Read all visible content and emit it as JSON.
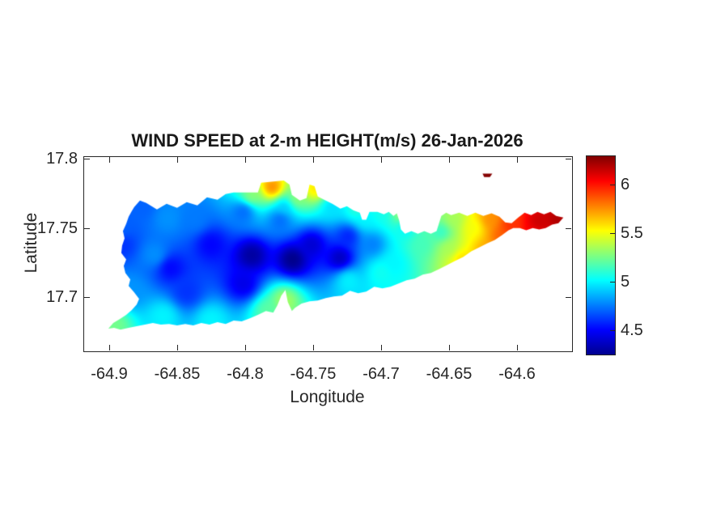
{
  "title": "WIND SPEED at 2-m HEIGHT(m/s) 26-Jan-2026",
  "axes": {
    "xlabel": "Longitude",
    "ylabel": "Latitude",
    "xlim": [
      -64.919,
      -64.561
    ],
    "ylim": [
      17.6616,
      17.802
    ],
    "xticks": [
      -64.9,
      -64.85,
      -64.8,
      -64.75,
      -64.7,
      -64.65,
      -64.6
    ],
    "xtick_labels": [
      "-64.9",
      "-64.85",
      "-64.8",
      "-64.75",
      "-64.7",
      "-64.65",
      "-64.6"
    ],
    "yticks": [
      17.7,
      17.75,
      17.8
    ],
    "ytick_labels": [
      "17.7",
      "17.75",
      "17.8"
    ],
    "axis_color": "#262626",
    "grid": false,
    "box": true
  },
  "colorbar": {
    "location": "right",
    "limits": [
      4.25,
      6.29
    ],
    "ticks": [
      4.5,
      5,
      5.5,
      6
    ],
    "tick_labels": [
      "4.5",
      "5",
      "5.5",
      "6"
    ],
    "colormap": "jet"
  },
  "chart_data": {
    "type": "heatmap",
    "title": "WIND SPEED at 2-m HEIGHT(m/s) 26-Jan-2026",
    "xlabel": "Longitude",
    "ylabel": "Latitude",
    "units": "m/s",
    "colormap": "jet",
    "value_range": [
      4.25,
      6.29
    ],
    "island_outline": [
      [
        -64.8822,
        17.7657
      ],
      [
        -64.878,
        17.7704
      ],
      [
        -64.8733,
        17.7687
      ],
      [
        -64.8655,
        17.764
      ],
      [
        -64.8584,
        17.7681
      ],
      [
        -64.8507,
        17.7652
      ],
      [
        -64.8436,
        17.7692
      ],
      [
        -64.8358,
        17.7669
      ],
      [
        -64.8287,
        17.7728
      ],
      [
        -64.821,
        17.771
      ],
      [
        -64.815,
        17.7751
      ],
      [
        -64.8091,
        17.7763
      ],
      [
        -64.7913,
        17.7763
      ],
      [
        -64.7889,
        17.7833
      ],
      [
        -64.7723,
        17.785
      ],
      [
        -64.7681,
        17.7821
      ],
      [
        -64.7663,
        17.7745
      ],
      [
        -64.7604,
        17.7704
      ],
      [
        -64.7556,
        17.7722
      ],
      [
        -64.7533,
        17.7821
      ],
      [
        -64.7497,
        17.7809
      ],
      [
        -64.7473,
        17.7733
      ],
      [
        -64.7426,
        17.771
      ],
      [
        -64.7366,
        17.7681
      ],
      [
        -64.7307,
        17.7646
      ],
      [
        -64.7259,
        17.7663
      ],
      [
        -64.7212,
        17.7634
      ],
      [
        -64.7164,
        17.7616
      ],
      [
        -64.7147,
        17.7564
      ],
      [
        -64.7117,
        17.7564
      ],
      [
        -64.7093,
        17.7622
      ],
      [
        -64.7034,
        17.7622
      ],
      [
        -64.6987,
        17.7605
      ],
      [
        -64.6951,
        17.7622
      ],
      [
        -64.6916,
        17.7593
      ],
      [
        -64.6892,
        17.7611
      ],
      [
        -64.6874,
        17.7558
      ],
      [
        -64.6862,
        17.7494
      ],
      [
        -64.6832,
        17.7464
      ],
      [
        -64.6785,
        17.7482
      ],
      [
        -64.6737,
        17.7464
      ],
      [
        -64.669,
        17.7482
      ],
      [
        -64.6642,
        17.7464
      ],
      [
        -64.66,
        17.7482
      ],
      [
        -64.6582,
        17.754
      ],
      [
        -64.6565,
        17.7593
      ],
      [
        -64.6529,
        17.7616
      ],
      [
        -64.6493,
        17.7599
      ],
      [
        -64.6434,
        17.7616
      ],
      [
        -64.6374,
        17.7593
      ],
      [
        -64.6315,
        17.7616
      ],
      [
        -64.6256,
        17.7593
      ],
      [
        -64.6196,
        17.7611
      ],
      [
        -64.6137,
        17.7587
      ],
      [
        -64.6095,
        17.7546
      ],
      [
        -64.6048,
        17.754
      ],
      [
        -64.6,
        17.7581
      ],
      [
        -64.5953,
        17.7616
      ],
      [
        -64.5905,
        17.7599
      ],
      [
        -64.5858,
        17.7622
      ],
      [
        -64.581,
        17.7605
      ],
      [
        -64.5763,
        17.7622
      ],
      [
        -64.5721,
        17.7593
      ],
      [
        -64.5668,
        17.7581
      ],
      [
        -64.5704,
        17.754
      ],
      [
        -64.5751,
        17.7529
      ],
      [
        -64.5798,
        17.7505
      ],
      [
        -64.5846,
        17.7494
      ],
      [
        -64.5893,
        17.7505
      ],
      [
        -64.5941,
        17.7488
      ],
      [
        -64.5988,
        17.7505
      ],
      [
        -64.6036,
        17.7505
      ],
      [
        -64.6071,
        17.7488
      ],
      [
        -64.6119,
        17.7453
      ],
      [
        -64.6172,
        17.7418
      ],
      [
        -64.6226,
        17.7394
      ],
      [
        -64.6285,
        17.7365
      ],
      [
        -64.6345,
        17.7336
      ],
      [
        -64.6404,
        17.7295
      ],
      [
        -64.6463,
        17.7266
      ],
      [
        -64.6523,
        17.7236
      ],
      [
        -64.6582,
        17.7207
      ],
      [
        -64.6642,
        17.7178
      ],
      [
        -64.6701,
        17.7166
      ],
      [
        -64.6761,
        17.7137
      ],
      [
        -64.682,
        17.7125
      ],
      [
        -64.6879,
        17.7102
      ],
      [
        -64.6939,
        17.7078
      ],
      [
        -64.6998,
        17.7067
      ],
      [
        -64.7058,
        17.7078
      ],
      [
        -64.7117,
        17.7043
      ],
      [
        -64.7176,
        17.7032
      ],
      [
        -64.7236,
        17.7049
      ],
      [
        -64.7295,
        17.7014
      ],
      [
        -64.7355,
        17.7008
      ],
      [
        -64.7414,
        17.6997
      ],
      [
        -64.7473,
        17.6979
      ],
      [
        -64.7533,
        17.6973
      ],
      [
        -64.7592,
        17.6956
      ],
      [
        -64.764,
        17.6926
      ],
      [
        -64.7663,
        17.6903
      ],
      [
        -64.7693,
        17.6967
      ],
      [
        -64.7711,
        17.7055
      ],
      [
        -64.7741,
        17.7014
      ],
      [
        -64.777,
        17.6944
      ],
      [
        -64.78,
        17.6891
      ],
      [
        -64.7854,
        17.6903
      ],
      [
        -64.7913,
        17.6874
      ],
      [
        -64.7972,
        17.685
      ],
      [
        -64.8032,
        17.6827
      ],
      [
        -64.8091,
        17.6833
      ],
      [
        -64.815,
        17.6809
      ],
      [
        -64.821,
        17.6821
      ],
      [
        -64.8269,
        17.6804
      ],
      [
        -64.8329,
        17.6815
      ],
      [
        -64.8388,
        17.6798
      ],
      [
        -64.8447,
        17.6809
      ],
      [
        -64.8507,
        17.6798
      ],
      [
        -64.8566,
        17.6809
      ],
      [
        -64.8626,
        17.6804
      ],
      [
        -64.8685,
        17.6815
      ],
      [
        -64.8744,
        17.6804
      ],
      [
        -64.8804,
        17.6792
      ],
      [
        -64.8863,
        17.678
      ],
      [
        -64.8923,
        17.6768
      ],
      [
        -64.897,
        17.678
      ],
      [
        -64.9012,
        17.6774
      ],
      [
        -64.8976,
        17.6815
      ],
      [
        -64.8929,
        17.6844
      ],
      [
        -64.8881,
        17.6874
      ],
      [
        -64.884,
        17.6909
      ],
      [
        -64.8804,
        17.695
      ],
      [
        -64.8786,
        17.6991
      ],
      [
        -64.8822,
        17.7038
      ],
      [
        -64.8863,
        17.7084
      ],
      [
        -64.8851,
        17.7131
      ],
      [
        -64.8887,
        17.7178
      ],
      [
        -64.8899,
        17.723
      ],
      [
        -64.8881,
        17.7277
      ],
      [
        -64.8917,
        17.7324
      ],
      [
        -64.8911,
        17.7377
      ],
      [
        -64.8893,
        17.7429
      ],
      [
        -64.8905,
        17.7482
      ],
      [
        -64.8881,
        17.7535
      ],
      [
        -64.8863,
        17.7587
      ],
      [
        -64.884,
        17.7628
      ]
    ],
    "islet": {
      "outline": [
        [
          -64.6262,
          17.7899
        ],
        [
          -64.619,
          17.7899
        ],
        [
          -64.6208,
          17.7875
        ],
        [
          -64.625,
          17.7875
        ]
      ],
      "value": 6.28
    },
    "samples": [
      [
        -64.766,
        17.728,
        4.25
      ],
      [
        -64.796,
        17.731,
        4.3
      ],
      [
        -64.731,
        17.729,
        4.35
      ],
      [
        -64.752,
        17.739,
        4.4
      ],
      [
        -64.802,
        17.71,
        4.45
      ],
      [
        -64.826,
        17.739,
        4.5
      ],
      [
        -64.856,
        17.722,
        4.5
      ],
      [
        -64.725,
        17.745,
        4.55
      ],
      [
        -64.844,
        17.704,
        4.6
      ],
      [
        -64.891,
        17.739,
        4.6
      ],
      [
        -64.891,
        17.751,
        4.7
      ],
      [
        -64.707,
        17.739,
        4.75
      ],
      [
        -64.775,
        17.757,
        4.7
      ],
      [
        -64.802,
        17.763,
        4.7
      ],
      [
        -64.867,
        17.731,
        4.8
      ],
      [
        -64.838,
        17.757,
        4.75
      ],
      [
        -64.858,
        17.758,
        4.8
      ],
      [
        -64.885,
        17.704,
        4.8
      ],
      [
        -64.876,
        17.766,
        4.7
      ],
      [
        -64.772,
        17.766,
        4.9
      ],
      [
        -64.737,
        17.766,
        4.95
      ],
      [
        -64.861,
        17.687,
        5.0
      ],
      [
        -64.826,
        17.684,
        5.0
      ],
      [
        -64.725,
        17.713,
        5.0
      ],
      [
        -64.713,
        17.757,
        5.0
      ],
      [
        -64.692,
        17.725,
        5.0
      ],
      [
        -64.7,
        17.761,
        5.05
      ],
      [
        -64.701,
        17.719,
        5.05
      ],
      [
        -64.719,
        17.764,
        5.1
      ],
      [
        -64.683,
        17.751,
        5.0
      ],
      [
        -64.657,
        17.748,
        5.1
      ],
      [
        -64.671,
        17.739,
        5.15
      ],
      [
        -64.784,
        17.691,
        5.2
      ],
      [
        -64.897,
        17.681,
        5.25
      ],
      [
        -64.796,
        17.774,
        5.3
      ],
      [
        -64.763,
        17.772,
        5.3
      ],
      [
        -64.772,
        17.698,
        5.35
      ],
      [
        -64.686,
        17.762,
        5.35
      ],
      [
        -64.663,
        17.762,
        5.3
      ],
      [
        -64.651,
        17.736,
        5.35
      ],
      [
        -64.648,
        17.757,
        5.35
      ],
      [
        -64.633,
        17.751,
        5.5
      ],
      [
        -64.75,
        17.779,
        5.6
      ],
      [
        -64.642,
        17.728,
        5.6
      ],
      [
        -64.621,
        17.757,
        5.75
      ],
      [
        -64.624,
        17.734,
        5.7
      ],
      [
        -64.612,
        17.744,
        5.85
      ],
      [
        -64.781,
        17.78,
        5.8
      ],
      [
        -64.606,
        17.752,
        5.95
      ],
      [
        -64.589,
        17.746,
        6.05
      ],
      [
        -64.585,
        17.755,
        6.15
      ],
      [
        -64.57,
        17.757,
        6.2
      ]
    ]
  }
}
